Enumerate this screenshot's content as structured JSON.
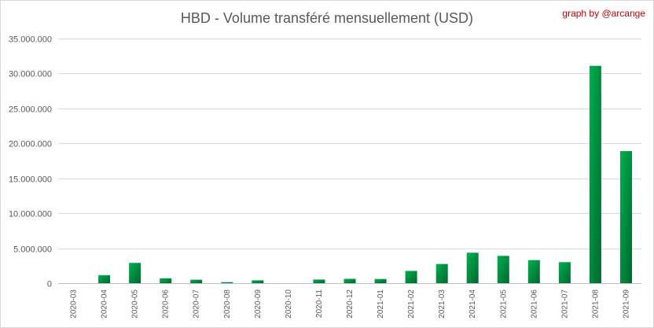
{
  "chart_data": {
    "type": "bar",
    "title": "HBD - Volume transféré mensuellement (USD)",
    "credit": "graph by @arcange",
    "xlabel": "",
    "ylabel": "",
    "ylim": [
      0,
      35000000
    ],
    "y_ticks": [
      0,
      5000000,
      10000000,
      15000000,
      20000000,
      25000000,
      30000000,
      35000000
    ],
    "y_tick_labels": [
      "0",
      "5.000.000",
      "10.000.000",
      "15.000.000",
      "20.000.000",
      "25.000.000",
      "30.000.000",
      "35.000.000"
    ],
    "grid": true,
    "legend": "none",
    "categories": [
      "2020-03",
      "2020-04",
      "2020-05",
      "2020-06",
      "2020-07",
      "2020-08",
      "2020-09",
      "2020-10",
      "2020-11",
      "2020-12",
      "2021-01",
      "2021-02",
      "2021-03",
      "2021-04",
      "2021-05",
      "2021-06",
      "2021-07",
      "2021-08",
      "2021-09"
    ],
    "values": [
      0,
      1150000,
      2900000,
      700000,
      500000,
      150000,
      400000,
      0,
      520000,
      620000,
      600000,
      1750000,
      2750000,
      4350000,
      3900000,
      3300000,
      3000000,
      31100000,
      18900000
    ],
    "colors": {
      "bar_light": "#00b050",
      "bar_dark": "#00662e",
      "grid": "#d9d9d9",
      "axis": "#bfbfbf"
    }
  }
}
